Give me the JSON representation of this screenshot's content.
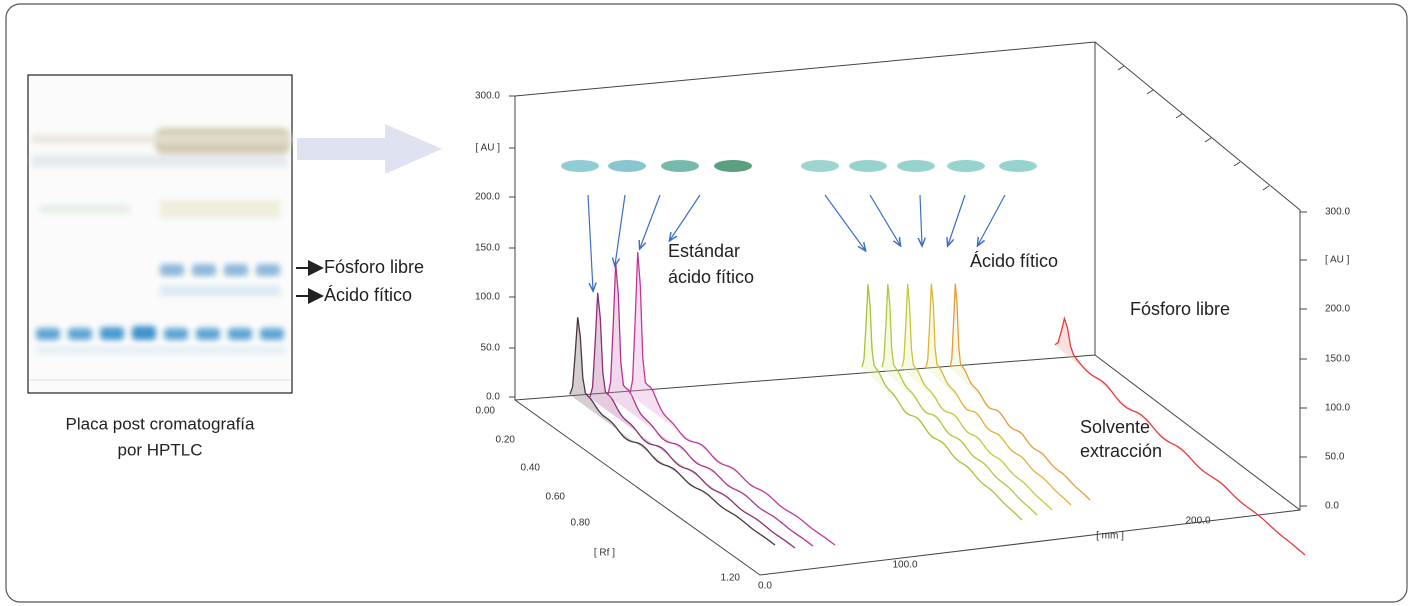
{
  "plate_caption": [
    "Placa post cromatografía",
    "por HPTLC"
  ],
  "plate_labels": [
    "Fósforo libre",
    "Ácido fítico"
  ],
  "chart": {
    "left_axis_ticks": [
      "300.0",
      "[ AU ]",
      "200.0",
      "150.0",
      "100.0",
      "50.0",
      "0.0"
    ],
    "right_axis_ticks": [
      "300.0",
      "[ AU ]",
      "200.0",
      "150.0",
      "100.0",
      "50.0",
      "0.0"
    ],
    "rf_axis_ticks": [
      "0.00",
      "0.20",
      "0.40",
      "0.60",
      "0.80",
      "[ Rf ]",
      "1.20"
    ],
    "mm_axis_ticks": [
      "0.0",
      "100.0",
      "[ mm ]",
      "200.0"
    ],
    "annotations": [
      "Estándar",
      "ácido fítico",
      "Ácido fítico",
      "Fósforo libre",
      "Solvente",
      "extracción"
    ]
  }
}
